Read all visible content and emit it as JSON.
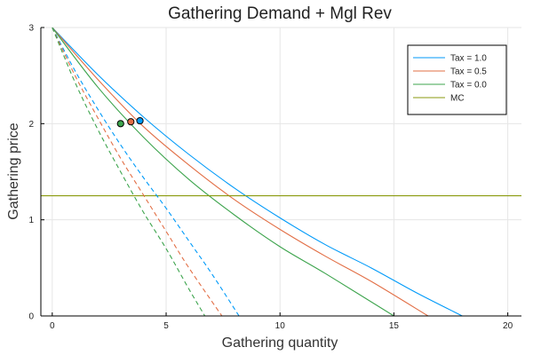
{
  "chart_data": {
    "type": "line",
    "title": "Gathering Demand + Mgl Rev",
    "xlabel": "Gathering quantity",
    "ylabel": "Gathering price",
    "xlim": [
      -0.5,
      20.6
    ],
    "ylim": [
      0,
      3
    ],
    "xticks": [
      0,
      5,
      10,
      15,
      20
    ],
    "yticks": [
      0,
      1,
      2,
      3
    ],
    "grid": true,
    "legend_position": "top-right",
    "series": [
      {
        "name": "Tax = 1.0",
        "color": "#009af9",
        "style": "solid",
        "role": "demand",
        "x": [
          0,
          2,
          4,
          6,
          8,
          10,
          12,
          14,
          16,
          18
        ],
        "y": [
          3.0,
          2.51,
          2.07,
          1.68,
          1.33,
          1.02,
          0.74,
          0.5,
          0.24,
          0.0
        ]
      },
      {
        "name": "Tax = 0.5",
        "color": "#e26f46",
        "style": "solid",
        "role": "demand",
        "x": [
          0,
          2,
          4,
          6,
          8,
          10,
          12,
          14,
          16.5
        ],
        "y": [
          3.0,
          2.46,
          1.97,
          1.57,
          1.21,
          0.9,
          0.62,
          0.36,
          0.0
        ]
      },
      {
        "name": "Tax = 0.0",
        "color": "#3da44d",
        "style": "solid",
        "role": "demand",
        "x": [
          0,
          2,
          4,
          6,
          8,
          10,
          12,
          15
        ],
        "y": [
          3.0,
          2.38,
          1.86,
          1.42,
          1.05,
          0.72,
          0.44,
          0.0
        ]
      },
      {
        "name": "MC",
        "color": "#8a9a0f",
        "style": "solid",
        "role": "marginal cost",
        "x": [
          -0.5,
          20.6
        ],
        "y": [
          1.25,
          1.25
        ]
      },
      {
        "name": "",
        "color": "#009af9",
        "style": "dashed",
        "role": "marginal revenue (Tax = 1.0)",
        "x": [
          0,
          1,
          2,
          3,
          4,
          5,
          6,
          7,
          8.2
        ],
        "y": [
          3.0,
          2.55,
          2.15,
          1.78,
          1.44,
          1.12,
          0.78,
          0.44,
          0.0
        ]
      },
      {
        "name": "",
        "color": "#e26f46",
        "style": "dashed",
        "role": "marginal revenue (Tax = 0.5)",
        "x": [
          0,
          1,
          2,
          3,
          4,
          5,
          6,
          7.45
        ],
        "y": [
          3.0,
          2.5,
          2.06,
          1.64,
          1.26,
          0.88,
          0.5,
          0.0
        ]
      },
      {
        "name": "",
        "color": "#3da44d",
        "style": "dashed",
        "role": "marginal revenue (Tax = 0.0)",
        "x": [
          0,
          1,
          2,
          3,
          4,
          5,
          6,
          6.7
        ],
        "y": [
          3.0,
          2.43,
          1.94,
          1.5,
          1.08,
          0.7,
          0.28,
          0.0
        ]
      }
    ],
    "points": [
      {
        "x": 3.85,
        "y": 2.03,
        "color": "#009af9"
      },
      {
        "x": 3.45,
        "y": 2.02,
        "color": "#e26f46"
      },
      {
        "x": 3.0,
        "y": 2.0,
        "color": "#3da44d"
      }
    ]
  }
}
